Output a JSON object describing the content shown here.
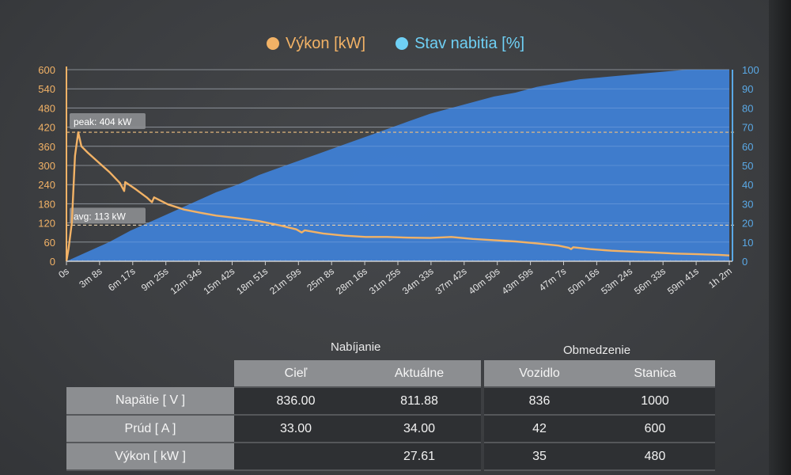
{
  "colors": {
    "power": "#f2b266",
    "soc_fill": "#3f7fd4",
    "soc_legend": "#6fd0f5",
    "grid": "#a9abae"
  },
  "chart_data": {
    "type": "line+area",
    "legend": [
      "Výkon [kW]",
      "Stav nabitia [%]"
    ],
    "x_tick_labels": [
      "0s",
      "3m 8s",
      "6m 17s",
      "9m 25s",
      "12m 34s",
      "15m 42s",
      "18m 51s",
      "21m 59s",
      "25m 8s",
      "28m 16s",
      "31m 25s",
      "34m 33s",
      "37m 42s",
      "40m 50s",
      "43m 59s",
      "47m 7s",
      "50m 16s",
      "53m 24s",
      "56m 33s",
      "59m 41s",
      "1h 2m"
    ],
    "y_left_ticks": [
      0,
      60,
      120,
      180,
      240,
      300,
      360,
      420,
      480,
      540,
      600
    ],
    "y_right_ticks": [
      0,
      10,
      20,
      30,
      40,
      50,
      60,
      70,
      80,
      90,
      100
    ],
    "y_left_range": [
      0,
      600
    ],
    "y_right_range": [
      0,
      100
    ],
    "x_range_minutes": [
      0,
      62
    ],
    "series": [
      {
        "name": "Výkon [kW]",
        "axis": "left",
        "points": [
          [
            0,
            0
          ],
          [
            0.2,
            40
          ],
          [
            0.5,
            120
          ],
          [
            0.8,
            330
          ],
          [
            1.1,
            404
          ],
          [
            1.4,
            360
          ],
          [
            2,
            340
          ],
          [
            3,
            310
          ],
          [
            4,
            280
          ],
          [
            5,
            245
          ],
          [
            5.4,
            220
          ],
          [
            5.5,
            248
          ],
          [
            6.5,
            225
          ],
          [
            7.5,
            200
          ],
          [
            8,
            185
          ],
          [
            8.2,
            200
          ],
          [
            9.5,
            178
          ],
          [
            11,
            162
          ],
          [
            12.5,
            152
          ],
          [
            14,
            143
          ],
          [
            16,
            135
          ],
          [
            18,
            126
          ],
          [
            20,
            112
          ],
          [
            21.5,
            100
          ],
          [
            22,
            90
          ],
          [
            22.3,
            97
          ],
          [
            24,
            87
          ],
          [
            26,
            80
          ],
          [
            28,
            76
          ],
          [
            30,
            76
          ],
          [
            32,
            74
          ],
          [
            34,
            73
          ],
          [
            36,
            76
          ],
          [
            38,
            70
          ],
          [
            40,
            66
          ],
          [
            42,
            62
          ],
          [
            44,
            56
          ],
          [
            46,
            49
          ],
          [
            47,
            42
          ],
          [
            47.2,
            38
          ],
          [
            47.4,
            44
          ],
          [
            49,
            38
          ],
          [
            51,
            33
          ],
          [
            53,
            30
          ],
          [
            55,
            27
          ],
          [
            57,
            24
          ],
          [
            59,
            22
          ],
          [
            61,
            20
          ],
          [
            62,
            18
          ]
        ]
      },
      {
        "name": "Stav nabitia [%]",
        "axis": "right",
        "points": [
          [
            0,
            0
          ],
          [
            2,
            5
          ],
          [
            4,
            10
          ],
          [
            6,
            16
          ],
          [
            8,
            21
          ],
          [
            10,
            26
          ],
          [
            12,
            31
          ],
          [
            14,
            36
          ],
          [
            16,
            40
          ],
          [
            18,
            45
          ],
          [
            20,
            49
          ],
          [
            22,
            53
          ],
          [
            24,
            57
          ],
          [
            26,
            61
          ],
          [
            28,
            65
          ],
          [
            30,
            69
          ],
          [
            32,
            73
          ],
          [
            34,
            77
          ],
          [
            36,
            80
          ],
          [
            38,
            83
          ],
          [
            40,
            86
          ],
          [
            42,
            88
          ],
          [
            44,
            91
          ],
          [
            46,
            93
          ],
          [
            48,
            95
          ],
          [
            50,
            96
          ],
          [
            52,
            97
          ],
          [
            54,
            98
          ],
          [
            56,
            99
          ],
          [
            58,
            100
          ],
          [
            60,
            100
          ],
          [
            62,
            100
          ]
        ]
      }
    ],
    "annotations": [
      {
        "label": "peak: 404 kW",
        "value": 404
      },
      {
        "label": "avg: 113 kW",
        "value": 113
      }
    ]
  },
  "table": {
    "group_charging": "Nabíjanie",
    "group_limit": "Obmedzenie",
    "columns": [
      "Cieľ",
      "Aktuálne",
      "Vozidlo",
      "Stanica"
    ],
    "rows": [
      {
        "label": "Napätie [ V ]",
        "cells": [
          "836.00",
          "811.88",
          "836",
          "1000"
        ]
      },
      {
        "label": "Prúd [ A ]",
        "cells": [
          "33.00",
          "34.00",
          "42",
          "600"
        ]
      },
      {
        "label": "Výkon [ kW ]",
        "cells": [
          "",
          "27.61",
          "35",
          "480"
        ]
      }
    ]
  }
}
